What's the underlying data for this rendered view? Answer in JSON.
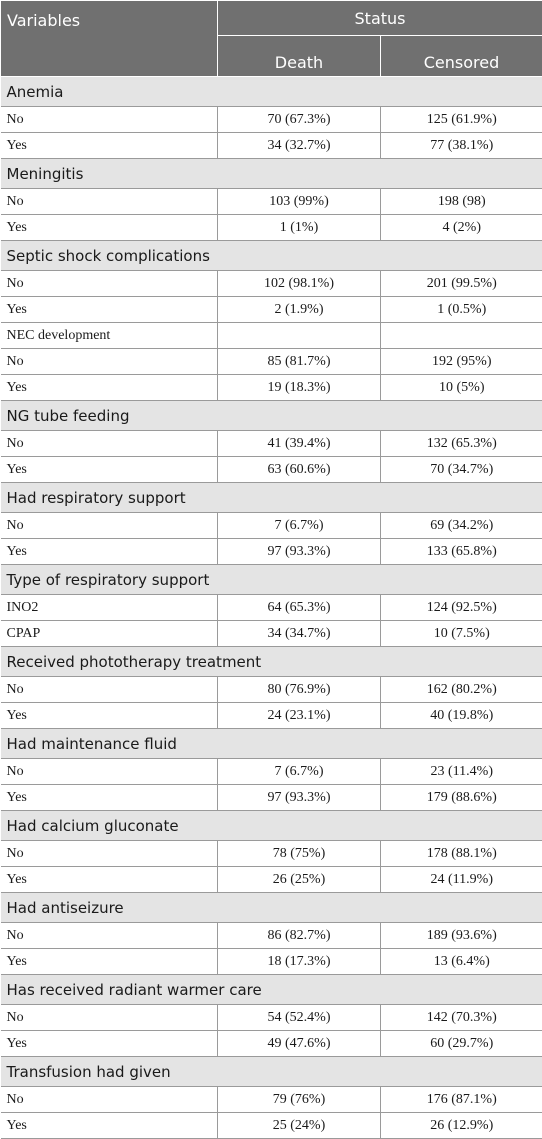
{
  "header": {
    "variables": "Variables",
    "status": "Status",
    "death": "Death",
    "censored": "Censored"
  },
  "rows": [
    {
      "type": "group",
      "label": "Anemia"
    },
    {
      "type": "data",
      "label": "No",
      "death": "70 (67.3%)",
      "censored": "125 (61.9%)"
    },
    {
      "type": "data",
      "label": "Yes",
      "death": "34 (32.7%)",
      "censored": "77 (38.1%)"
    },
    {
      "type": "group",
      "label": "Meningitis"
    },
    {
      "type": "data",
      "label": "No",
      "death": "103 (99%)",
      "censored": "198 (98)"
    },
    {
      "type": "data",
      "label": "Yes",
      "death": "1 (1%)",
      "censored": "4 (2%)"
    },
    {
      "type": "group",
      "label": "Septic shock complications"
    },
    {
      "type": "data",
      "label": "No",
      "death": "102 (98.1%)",
      "censored": "201 (99.5%)"
    },
    {
      "type": "data",
      "label": "Yes",
      "death": "2 (1.9%)",
      "censored": "1 (0.5%)"
    },
    {
      "type": "data",
      "label": "NEC development",
      "death": "",
      "censored": ""
    },
    {
      "type": "data",
      "label": "No",
      "death": "85 (81.7%)",
      "censored": "192 (95%)"
    },
    {
      "type": "data",
      "label": "Yes",
      "death": "19 (18.3%)",
      "censored": "10 (5%)"
    },
    {
      "type": "group",
      "label": "NG tube feeding"
    },
    {
      "type": "data",
      "label": "No",
      "death": "41 (39.4%)",
      "censored": "132 (65.3%)"
    },
    {
      "type": "data",
      "label": "Yes",
      "death": "63 (60.6%)",
      "censored": "70 (34.7%)"
    },
    {
      "type": "group",
      "label": "Had respiratory support"
    },
    {
      "type": "data",
      "label": "No",
      "death": "7 (6.7%)",
      "censored": "69 (34.2%)"
    },
    {
      "type": "data",
      "label": "Yes",
      "death": "97 (93.3%)",
      "censored": "133 (65.8%)"
    },
    {
      "type": "group",
      "label": "Type of respiratory support"
    },
    {
      "type": "data",
      "label": "INO2",
      "death": "64 (65.3%)",
      "censored": "124 (92.5%)"
    },
    {
      "type": "data",
      "label": "CPAP",
      "death": "34 (34.7%)",
      "censored": "10 (7.5%)"
    },
    {
      "type": "group",
      "label": "Received phototherapy treatment"
    },
    {
      "type": "data",
      "label": "No",
      "death": "80 (76.9%)",
      "censored": "162 (80.2%)"
    },
    {
      "type": "data",
      "label": "Yes",
      "death": "24 (23.1%)",
      "censored": "40 (19.8%)"
    },
    {
      "type": "group",
      "label": "Had maintenance fluid"
    },
    {
      "type": "data",
      "label": "No",
      "death": "7 (6.7%)",
      "censored": "23 (11.4%)"
    },
    {
      "type": "data",
      "label": "Yes",
      "death": "97 (93.3%)",
      "censored": "179 (88.6%)"
    },
    {
      "type": "group",
      "label": "Had calcium gluconate"
    },
    {
      "type": "data",
      "label": "No",
      "death": "78 (75%)",
      "censored": "178 (88.1%)"
    },
    {
      "type": "data",
      "label": "Yes",
      "death": "26 (25%)",
      "censored": "24 (11.9%)"
    },
    {
      "type": "group",
      "label": "Had antiseizure"
    },
    {
      "type": "data",
      "label": "No",
      "death": "86 (82.7%)",
      "censored": "189 (93.6%)"
    },
    {
      "type": "data",
      "label": "Yes",
      "death": "18 (17.3%)",
      "censored": "13 (6.4%)"
    },
    {
      "type": "group",
      "label": "Has received radiant warmer care"
    },
    {
      "type": "data",
      "label": "No",
      "death": "54 (52.4%)",
      "censored": "142 (70.3%)"
    },
    {
      "type": "data",
      "label": "Yes",
      "death": "49 (47.6%)",
      "censored": "60 (29.7%)"
    },
    {
      "type": "group",
      "label": "Transfusion had given"
    },
    {
      "type": "data",
      "label": "No",
      "death": "79 (76%)",
      "censored": "176 (87.1%)"
    },
    {
      "type": "data",
      "label": "Yes",
      "death": "25 (24%)",
      "censored": "26 (12.9%)"
    }
  ]
}
